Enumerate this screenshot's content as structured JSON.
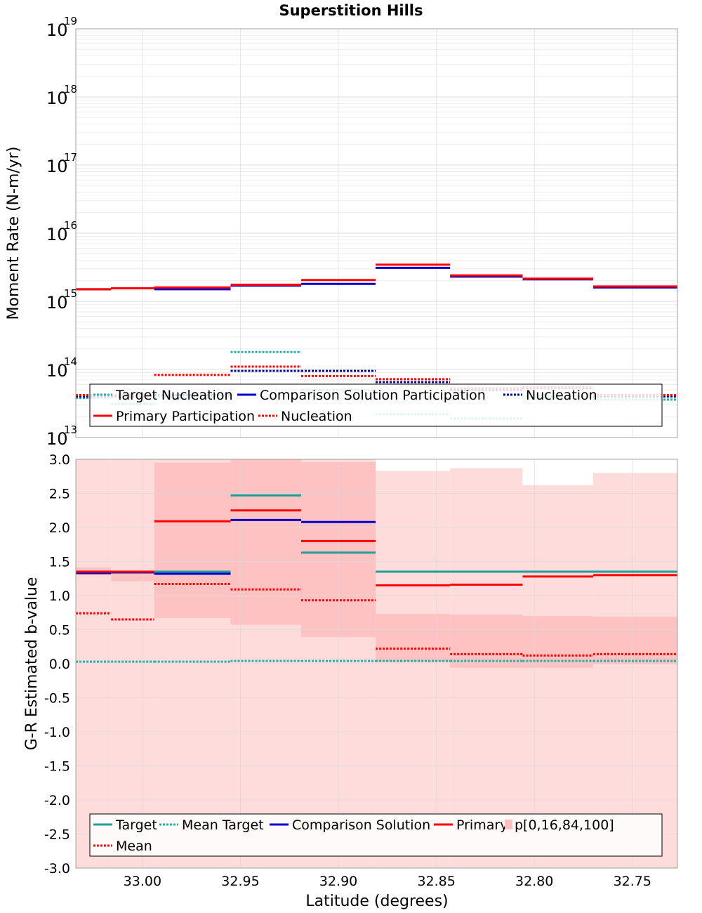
{
  "chart_data": [
    {
      "type": "line",
      "title": "Superstition Hills",
      "xlabel": "",
      "ylabel": "Moment Rate (N-m/yr)",
      "yscale": "log",
      "ylim": [
        10000000000000.0,
        1e+19
      ],
      "xlim": [
        33.034,
        32.727
      ],
      "x_reversed": true,
      "y_tick_labels": [
        {
          "base": "10",
          "exp": "13"
        },
        {
          "base": "10",
          "exp": "14"
        },
        {
          "base": "10",
          "exp": "15"
        },
        {
          "base": "10",
          "exp": "16"
        },
        {
          "base": "10",
          "exp": "17"
        },
        {
          "base": "10",
          "exp": "18"
        },
        {
          "base": "10",
          "exp": "19"
        }
      ],
      "bins": [
        [
          33.034,
          33.016
        ],
        [
          33.016,
          32.994
        ],
        [
          32.994,
          32.955
        ],
        [
          32.955,
          32.919
        ],
        [
          32.919,
          32.881
        ],
        [
          32.881,
          32.843
        ],
        [
          32.843,
          32.806
        ],
        [
          32.806,
          32.77
        ],
        [
          32.77,
          32.727
        ]
      ],
      "series": [
        {
          "name": "Target Nucleation",
          "style": "dotted",
          "color": "#20b2aa",
          "values": [
            38000000000000.0,
            31000000000000.0,
            39000000000000.0,
            180000000000000.0,
            50000000000000.0,
            22000000000000.0,
            19000000000000.0,
            40000000000000.0,
            36000000000000.0
          ]
        },
        {
          "name": "Comparison Solution Participation",
          "style": "solid",
          "color": "#0000cc",
          "values": [
            1500000000000000.0,
            1550000000000000.0,
            1500000000000000.0,
            1700000000000000.0,
            1800000000000000.0,
            3100000000000000.0,
            2300000000000000.0,
            2100000000000000.0,
            1600000000000000.0
          ]
        },
        {
          "name": "Nucleation",
          "style": "dotted",
          "color": "#00008b",
          "values": [
            40000000000000.0,
            40000000000000.0,
            42000000000000.0,
            95000000000000.0,
            95000000000000.0,
            65000000000000.0,
            50000000000000.0,
            53000000000000.0,
            40000000000000.0
          ]
        },
        {
          "name": "Primary Participation",
          "style": "solid",
          "color": "#ff0000",
          "values": [
            1500000000000000.0,
            1550000000000000.0,
            1600000000000000.0,
            1750000000000000.0,
            2050000000000000.0,
            3450000000000000.0,
            2400000000000000.0,
            2150000000000000.0,
            1650000000000000.0
          ]
        },
        {
          "name": "Nucleation",
          "style": "dotted",
          "color": "#ff0000",
          "values": [
            42000000000000.0,
            42000000000000.0,
            83000000000000.0,
            110000000000000.0,
            80000000000000.0,
            72000000000000.0,
            53000000000000.0,
            55000000000000.0,
            42000000000000.0
          ]
        }
      ],
      "legend": [
        {
          "label": "Target Nucleation",
          "style": "dotted",
          "color": "#20b2aa"
        },
        {
          "label": "Comparison Solution Participation",
          "style": "solid",
          "color": "#0000cc"
        },
        {
          "label": "Nucleation",
          "style": "dotted",
          "color": "#00008b"
        },
        {
          "label": "Primary Participation",
          "style": "solid",
          "color": "#ff0000"
        },
        {
          "label": "Nucleation",
          "style": "dotted",
          "color": "#ff0000"
        }
      ],
      "legend_position": "bottom"
    },
    {
      "type": "line",
      "title": "",
      "xlabel": "Latitude (degrees)",
      "ylabel": "G-R Estimated b-value",
      "ylim": [
        -3.0,
        3.0
      ],
      "xlim": [
        33.034,
        32.727
      ],
      "x_reversed": true,
      "y_ticks": [
        -3.0,
        -2.5,
        -2.0,
        -1.5,
        -1.0,
        -0.5,
        0.0,
        0.5,
        1.0,
        1.5,
        2.0,
        2.5,
        3.0
      ],
      "y_tick_labels": [
        "-3.0",
        "-2.5",
        "-2.0",
        "-1.5",
        "-1.0",
        "-0.5",
        "0.0",
        "0.5",
        "1.0",
        "1.5",
        "2.0",
        "2.5",
        "3.0"
      ],
      "x_ticks": [
        33.0,
        32.95,
        32.9,
        32.85,
        32.8,
        32.75
      ],
      "x_tick_labels": [
        "33.00",
        "32.95",
        "32.90",
        "32.85",
        "32.80",
        "32.75"
      ],
      "bins": [
        [
          33.034,
          33.016
        ],
        [
          33.016,
          32.994
        ],
        [
          32.994,
          32.955
        ],
        [
          32.955,
          32.919
        ],
        [
          32.919,
          32.881
        ],
        [
          32.881,
          32.843
        ],
        [
          32.843,
          32.806
        ],
        [
          32.806,
          32.77
        ],
        [
          32.77,
          32.727
        ]
      ],
      "bands": {
        "name": "p[0,16,84,100]",
        "p0": [
          -3.0,
          -3.0,
          -3.0,
          -3.0,
          -3.0,
          -3.0,
          -3.0,
          -3.0,
          -3.0
        ],
        "p16": [
          1.3,
          1.21,
          0.67,
          0.57,
          0.39,
          0.02,
          -0.06,
          -0.06,
          -0.01
        ],
        "p84": [
          1.41,
          1.33,
          2.95,
          3.0,
          2.96,
          0.73,
          0.72,
          0.7,
          0.69
        ],
        "p100": [
          3.0,
          3.0,
          3.0,
          3.0,
          3.0,
          2.83,
          2.87,
          2.62,
          2.8
        ]
      },
      "series": [
        {
          "name": "Target",
          "style": "solid",
          "color": "#1f9e9a",
          "values": [
            1.35,
            1.35,
            1.35,
            2.47,
            1.63,
            1.35,
            1.35,
            1.35,
            1.35
          ]
        },
        {
          "name": "Mean Target",
          "style": "dotted",
          "color": "#20b2aa",
          "values": [
            0.03,
            0.03,
            0.03,
            0.04,
            0.04,
            0.04,
            0.04,
            0.04,
            0.04
          ]
        },
        {
          "name": "Comparison Solution",
          "style": "solid",
          "color": "#0000cc",
          "values": [
            1.33,
            1.34,
            1.32,
            2.11,
            2.08,
            null,
            null,
            null,
            null
          ]
        },
        {
          "name": "Primary",
          "style": "solid",
          "color": "#ff0000",
          "values": [
            1.35,
            1.35,
            2.09,
            2.25,
            1.8,
            1.15,
            1.16,
            1.28,
            1.3
          ]
        },
        {
          "name": "Mean",
          "style": "dotted",
          "color": "#ff0000",
          "values": [
            0.74,
            0.65,
            1.17,
            1.09,
            0.93,
            0.22,
            0.14,
            0.12,
            0.14
          ]
        }
      ],
      "legend": [
        {
          "label": "Target",
          "style": "solid",
          "color": "#1f9e9a"
        },
        {
          "label": "Mean Target",
          "style": "dotted",
          "color": "#20b2aa"
        },
        {
          "label": "Comparison Solution",
          "style": "solid",
          "color": "#0000cc"
        },
        {
          "label": "Primary",
          "style": "solid",
          "color": "#ff0000"
        },
        {
          "label": "p[0,16,84,100]",
          "style": "patch",
          "color": "#ffc0c0"
        },
        {
          "label": "Mean",
          "style": "dotted",
          "color": "#ff0000"
        }
      ],
      "legend_position": "bottom"
    }
  ]
}
